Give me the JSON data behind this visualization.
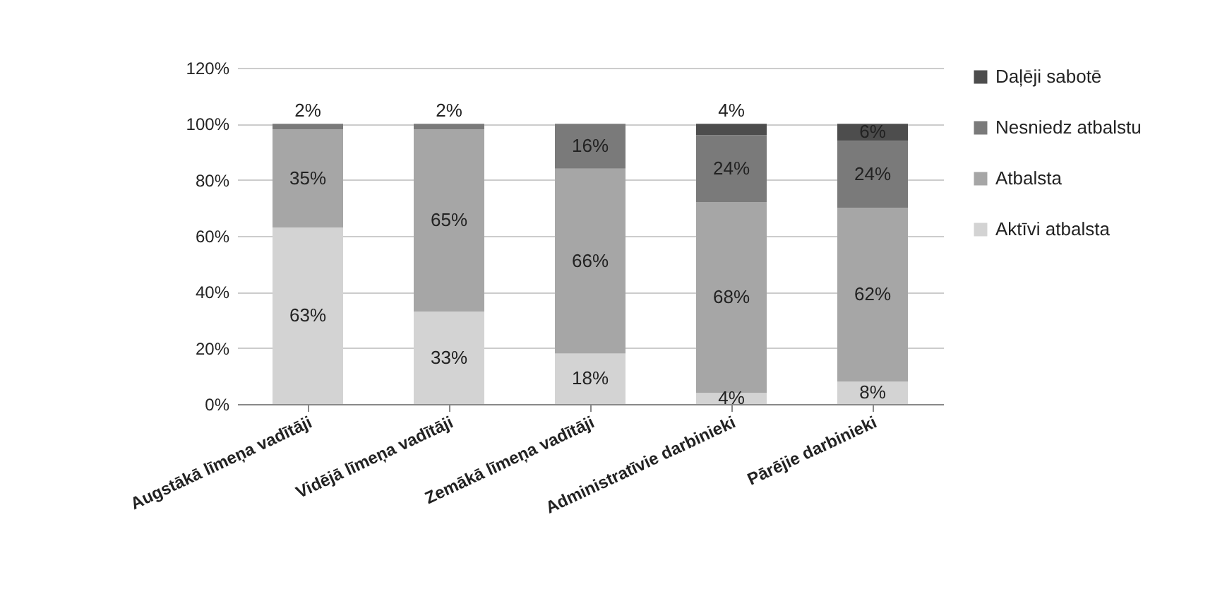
{
  "chart_data": {
    "type": "bar",
    "stacked": true,
    "categories": [
      "Augstākā līmeņa vadītāji",
      "Vidējā līmeņa vadītāji",
      "Zemākā līmeņa vadītāji",
      "Administratīvie darbinieki",
      "Pārējie darbinieki"
    ],
    "series": [
      {
        "name": "Aktīvi atbalsta",
        "color": "#d3d3d3",
        "values": [
          63,
          33,
          18,
          4,
          8
        ],
        "value_labels": [
          "63%",
          "33%",
          "18%",
          "4%",
          "8%"
        ]
      },
      {
        "name": "Atbalsta",
        "color": "#a6a6a6",
        "values": [
          35,
          65,
          66,
          68,
          62
        ],
        "value_labels": [
          "35%",
          "65%",
          "66%",
          "68%",
          "62%"
        ]
      },
      {
        "name": "Nesniedz atbalstu",
        "color": "#7a7a7a",
        "values": [
          2,
          2,
          16,
          24,
          24
        ],
        "value_labels": [
          "2%",
          "2%",
          "16%",
          "24%",
          "24%"
        ]
      },
      {
        "name": "Daļēji sabotē",
        "color": "#4d4d4d",
        "values": [
          null,
          null,
          null,
          4,
          6
        ],
        "value_labels": [
          null,
          null,
          null,
          "4%",
          "6%"
        ]
      }
    ],
    "ylim": [
      0,
      120
    ],
    "yticks": [
      {
        "value": 0,
        "label": "0%"
      },
      {
        "value": 20,
        "label": "20%"
      },
      {
        "value": 40,
        "label": "40%"
      },
      {
        "value": 60,
        "label": "60%"
      },
      {
        "value": 80,
        "label": "80%"
      },
      {
        "value": 100,
        "label": "100%"
      },
      {
        "value": 120,
        "label": "120%"
      }
    ],
    "grid": "y",
    "legend": "right"
  }
}
